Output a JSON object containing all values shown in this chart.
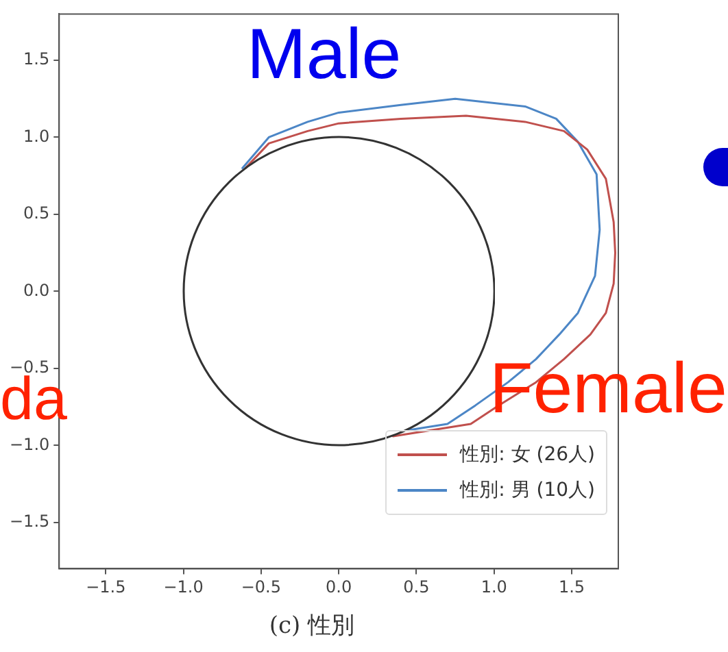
{
  "chart_data": {
    "type": "line",
    "title": "(c) 性別",
    "xlim": [
      -1.8,
      1.8
    ],
    "ylim": [
      -1.8,
      1.8
    ],
    "xticks": [
      {
        "value": -1.5,
        "label": "−1.5"
      },
      {
        "value": -1,
        "label": "−1.0"
      },
      {
        "value": -0.5,
        "label": "−0.5"
      },
      {
        "value": 0,
        "label": "0.0"
      },
      {
        "value": 0.5,
        "label": "0.5"
      },
      {
        "value": 1,
        "label": "1.0"
      },
      {
        "value": 1.5,
        "label": "1.5"
      }
    ],
    "yticks": [
      {
        "value": -1.5,
        "label": "−1.5"
      },
      {
        "value": -1,
        "label": "−1.0"
      },
      {
        "value": -0.5,
        "label": "−0.5"
      },
      {
        "value": 0,
        "label": "0.0"
      },
      {
        "value": 0.5,
        "label": "0.5"
      },
      {
        "value": 1,
        "label": "1.0"
      },
      {
        "value": 1.5,
        "label": "1.5"
      }
    ],
    "grid": false,
    "legend": "bottom right",
    "marker": "none",
    "line_style": "solid",
    "annotations": [
      "Male",
      "Female",
      "da"
    ],
    "series": [
      {
        "name": "性別: 女 (26人)",
        "color": "#c0504d",
        "x": [
          -0.6,
          -0.45,
          -0.2,
          0,
          0.4,
          0.82,
          1.2,
          1.45,
          1.6,
          1.72,
          1.77,
          1.78,
          1.77,
          1.72,
          1.62,
          1.45,
          1.27,
          1.03,
          0.85,
          0.6,
          0.35
        ],
        "values": [
          0.8,
          0.96,
          1.04,
          1.09,
          1.12,
          1.14,
          1.1,
          1.04,
          0.92,
          0.73,
          0.45,
          0.25,
          0.05,
          -0.14,
          -0.28,
          -0.44,
          -0.59,
          -0.74,
          -0.86,
          -0.9,
          -0.94
        ]
      },
      {
        "name": "性別: 男 (10人)",
        "color": "#4c86c6",
        "x": [
          -0.62,
          -0.45,
          -0.2,
          0,
          0.4,
          0.75,
          1.2,
          1.4,
          1.54,
          1.66,
          1.68,
          1.65,
          1.54,
          1.42,
          1.27,
          1.09,
          0.88,
          0.7,
          0.45
        ],
        "values": [
          0.8,
          1.0,
          1.1,
          1.16,
          1.21,
          1.25,
          1.2,
          1.12,
          0.97,
          0.76,
          0.4,
          0.1,
          -0.14,
          -0.28,
          -0.44,
          -0.59,
          -0.74,
          -0.86,
          -0.9
        ]
      }
    ]
  }
}
